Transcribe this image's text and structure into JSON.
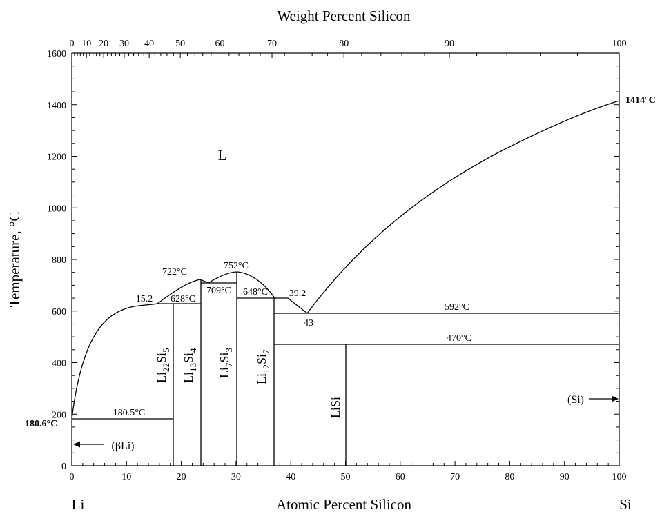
{
  "diagram": {
    "title_top": "Weight Percent Silicon",
    "xlabel": "Atomic Percent Silicon",
    "ylabel": "Temperature, °C",
    "left_element": "Li",
    "right_element": "Si",
    "x_atomic_ticks": [
      "0",
      "10",
      "20",
      "30",
      "40",
      "50",
      "60",
      "70",
      "80",
      "90",
      "100"
    ],
    "x_weight_ticks": [
      "0",
      "10",
      "20",
      "30",
      "40",
      "50",
      "60",
      "70",
      "80",
      "90",
      "100"
    ],
    "y_ticks": [
      "0",
      "200",
      "400",
      "600",
      "800",
      "1000",
      "1200",
      "1400",
      "1600"
    ],
    "liquid_label": "L",
    "annotations": {
      "si_melt": "1414°C",
      "li_melt": "180.6°C",
      "li_eutectic": "180.5°C",
      "t628": "628°C",
      "t722": "722°C",
      "t709": "709°C",
      "t752": "752°C",
      "t648": "648°C",
      "t592": "592°C",
      "t470": "470°C",
      "c15_2": "15.2",
      "c39_2": "39.2",
      "c43": "43",
      "beta_li_label": "(βLi)",
      "si_label": "(Si)"
    },
    "phases": {
      "li22si5": {
        "a": "Li",
        "s1": "22",
        "b": "Si",
        "s2": "5"
      },
      "li13si4": {
        "a": "Li",
        "s1": "13",
        "b": "Si",
        "s2": "4"
      },
      "li7si3": {
        "a": "Li",
        "s1": "7",
        "b": "Si",
        "s2": "3"
      },
      "li12si7": {
        "a": "Li",
        "s1": "12",
        "b": "Si",
        "s2": "7"
      },
      "lisi": "LiSi"
    }
  },
  "chart_data": {
    "type": "phase-diagram",
    "x_axis": {
      "label": "Atomic Percent Silicon",
      "range": [
        0,
        100
      ]
    },
    "x_axis_top": {
      "label": "Weight Percent Silicon",
      "range": [
        0,
        100
      ]
    },
    "y_axis": {
      "label": "Temperature, °C",
      "range": [
        0,
        1600
      ]
    },
    "invariants_C": [
      180.5,
      592,
      470,
      628,
      648,
      709
    ],
    "melting_points_C": {
      "Li": 180.6,
      "Si": 1414,
      "Li13Si4": 722,
      "Li7Si3": 752
    },
    "liquidus": [
      [
        0,
        180.6
      ],
      [
        2,
        430
      ],
      [
        5,
        530
      ],
      [
        10,
        592
      ],
      [
        15.2,
        628
      ],
      [
        20.2,
        705
      ],
      [
        23.5,
        722
      ],
      [
        25,
        712
      ],
      [
        30,
        752
      ],
      [
        35,
        722
      ],
      [
        39.2,
        650
      ],
      [
        43,
        592
      ],
      [
        50,
        760
      ],
      [
        60,
        980
      ],
      [
        70,
        1140
      ],
      [
        80,
        1260
      ],
      [
        90,
        1350
      ],
      [
        100,
        1414
      ]
    ],
    "compounds_at_pct_Si": {
      "Li22Si5": 18.5,
      "Li13Si4": 23.5,
      "Li7Si3": 30,
      "Li12Si7": 36.8,
      "LiSi": 50
    }
  }
}
